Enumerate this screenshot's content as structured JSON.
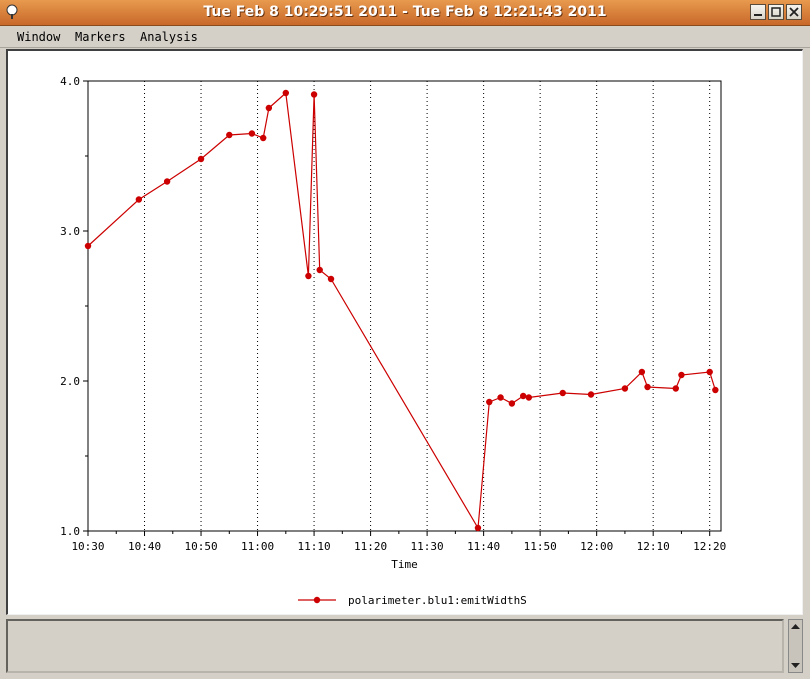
{
  "window": {
    "title": "Tue Feb  8 10:29:51 2011 - Tue Feb  8 12:21:43 2011"
  },
  "menu": {
    "items": [
      "Window",
      "Markers",
      "Analysis"
    ]
  },
  "colors": {
    "series": "#cc0000",
    "titlebar": "#d87a3a"
  },
  "icons": [
    "app-icon",
    "minimize-icon",
    "maximize-icon",
    "close-icon"
  ],
  "chart_data": {
    "type": "line",
    "title": "",
    "xlabel": "Time",
    "ylabel": "",
    "xlim": [
      "10:30",
      "12:22"
    ],
    "ylim": [
      1.0,
      4.0
    ],
    "grid": "vertical-dotted",
    "legend": "bottom-center",
    "x_ticks": [
      "10:30",
      "10:40",
      "10:50",
      "11:00",
      "11:10",
      "11:20",
      "11:30",
      "11:40",
      "11:50",
      "12:00",
      "12:10",
      "12:20"
    ],
    "y_ticks": [
      "1.0",
      "2.0",
      "3.0",
      "4.0"
    ],
    "series": [
      {
        "name": "polarimeter.blu1:emitWidthS",
        "x": [
          "10:30",
          "10:39",
          "10:44",
          "10:50",
          "10:55",
          "10:59",
          "11:01",
          "11:02",
          "11:05",
          "11:09",
          "11:10",
          "11:11",
          "11:13",
          "11:39",
          "11:41",
          "11:43",
          "11:45",
          "11:47",
          "11:48",
          "11:54",
          "11:59",
          "12:05",
          "12:08",
          "12:09",
          "12:14",
          "12:15",
          "12:20",
          "12:21"
        ],
        "y": [
          2.9,
          3.21,
          3.33,
          3.48,
          3.64,
          3.65,
          3.62,
          3.82,
          3.92,
          2.7,
          3.91,
          2.74,
          2.68,
          1.02,
          1.86,
          1.89,
          1.85,
          1.9,
          1.89,
          1.92,
          1.91,
          1.95,
          2.06,
          1.96,
          1.95,
          2.04,
          2.06,
          1.94
        ]
      }
    ]
  }
}
